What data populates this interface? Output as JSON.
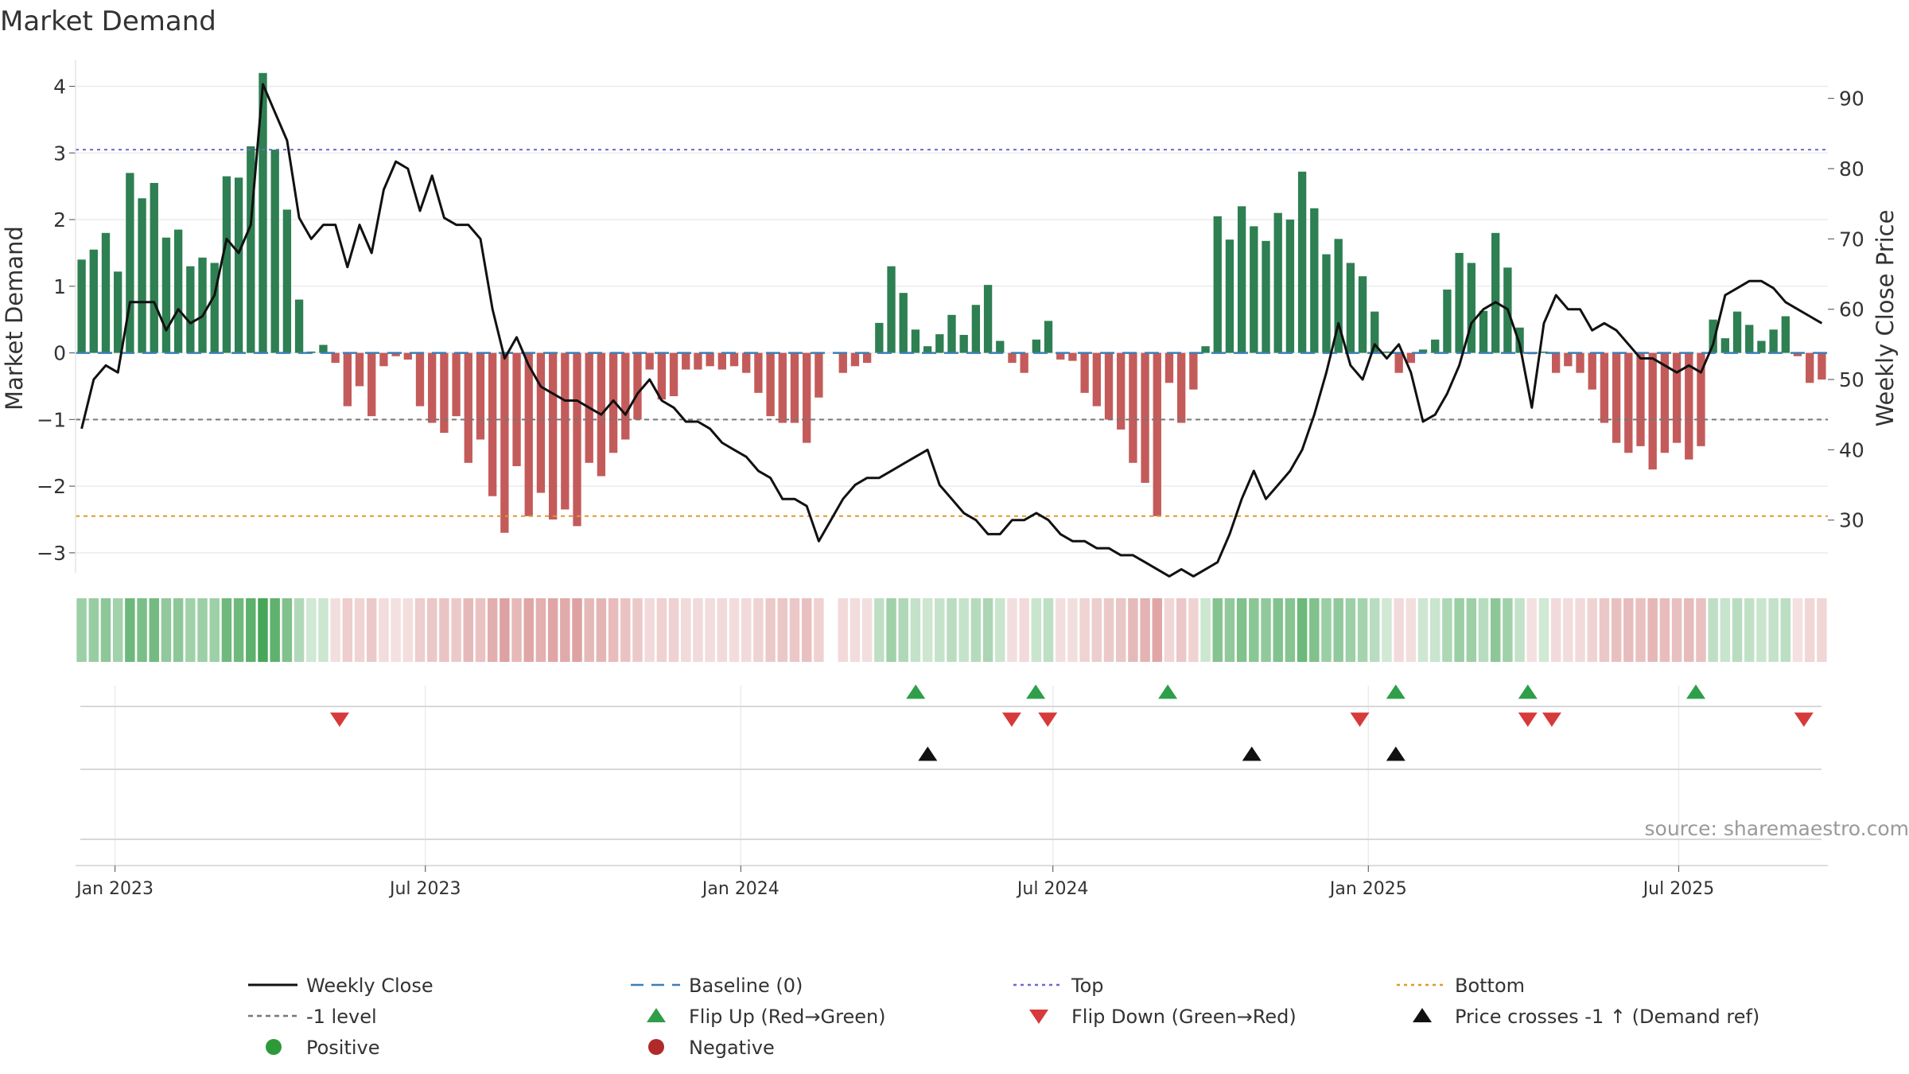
{
  "chart_data": {
    "type": "bar+line",
    "title": "Market Demand",
    "ylabel": "Market Demand",
    "ylabel_right": "Weekly Close Price",
    "ylim": [
      -3.3,
      4.4
    ],
    "ylim_right": [
      22.5,
      95.5
    ],
    "yticks": [
      -3,
      -2,
      -1,
      0,
      1,
      2,
      3,
      4
    ],
    "yticks_right": [
      30,
      40,
      50,
      60,
      70,
      80,
      90
    ],
    "date_start": "2022-12-09",
    "date_end": "2025-09-26",
    "x_ticks": [
      {
        "date": "2023-01-01",
        "label": "Jan 2023"
      },
      {
        "date": "2023-07-01",
        "label": "Jul 2023"
      },
      {
        "date": "2024-01-01",
        "label": "Jan 2024"
      },
      {
        "date": "2024-07-01",
        "label": "Jul 2024"
      },
      {
        "date": "2025-01-01",
        "label": "Jan 2025"
      },
      {
        "date": "2025-07-01",
        "label": "Jul 2025"
      }
    ],
    "reference_lines": [
      {
        "name": "Top",
        "value": 3.05,
        "color": "#6a6ad0",
        "dash": "4,5"
      },
      {
        "name": "-1 level",
        "value": -1.0,
        "color": "#777777",
        "dash": "6,5"
      },
      {
        "name": "Bottom",
        "value": -2.45,
        "color": "#e0982a",
        "dash": "5,5"
      },
      {
        "name": "Baseline (0)",
        "value": 0,
        "color": "#3a7fb8",
        "dash": "18,10"
      }
    ],
    "demand": [
      1.4,
      1.55,
      1.8,
      1.22,
      2.7,
      2.32,
      2.55,
      1.73,
      1.85,
      1.3,
      1.43,
      1.35,
      2.65,
      2.63,
      3.1,
      4.2,
      3.05,
      2.15,
      0.8,
      0.02,
      0.12,
      -0.15,
      -0.8,
      -0.5,
      -0.95,
      -0.2,
      -0.05,
      -0.1,
      -0.8,
      -1.05,
      -1.2,
      -0.95,
      -1.65,
      -1.3,
      -2.15,
      -2.7,
      -1.7,
      -2.45,
      -2.1,
      -2.5,
      -2.35,
      -2.6,
      -1.65,
      -1.85,
      -1.5,
      -1.3,
      -1.0,
      -0.25,
      -0.7,
      -0.65,
      -0.25,
      -0.25,
      -0.2,
      -0.25,
      -0.2,
      -0.3,
      -0.6,
      -0.95,
      -1.05,
      -1.05,
      -1.35,
      -0.67,
      null,
      -0.3,
      -0.2,
      -0.15,
      0.45,
      1.3,
      0.9,
      0.35,
      0.1,
      0.28,
      0.57,
      0.27,
      0.72,
      1.02,
      0.18,
      -0.15,
      -0.3,
      0.2,
      0.48,
      -0.1,
      -0.12,
      -0.6,
      -0.8,
      -1.0,
      -1.15,
      -1.65,
      -1.95,
      -2.45,
      -0.45,
      -1.05,
      -0.55,
      0.1,
      2.05,
      1.7,
      2.2,
      1.9,
      1.68,
      2.1,
      2.0,
      2.72,
      2.17,
      1.48,
      1.71,
      1.35,
      1.15,
      0.62,
      0.02,
      -0.3,
      -0.15,
      0.05,
      0.2,
      0.95,
      1.5,
      1.35,
      0.63,
      1.8,
      1.28,
      0.38,
      -0.02,
      0.02,
      -0.3,
      -0.2,
      -0.3,
      -0.55,
      -1.05,
      -1.35,
      -1.5,
      -1.4,
      -1.75,
      -1.5,
      -1.35,
      -1.6,
      -1.4,
      0.5,
      0.22,
      0.62,
      0.42,
      0.18,
      0.35,
      0.55,
      -0.05,
      -0.45,
      -0.4
    ],
    "price": [
      43,
      50,
      52,
      51,
      61,
      61,
      61,
      57,
      60,
      58,
      59,
      62,
      70,
      68,
      72,
      92,
      88,
      84,
      73,
      70,
      72,
      72,
      66,
      72,
      68,
      77,
      81,
      80,
      74,
      79,
      73,
      72,
      72,
      70,
      60,
      53,
      56,
      52,
      49,
      48,
      47,
      47,
      46,
      45,
      47,
      45,
      48,
      50,
      47,
      46,
      44,
      44,
      43,
      41,
      40,
      39,
      37,
      36,
      33,
      33,
      32,
      27,
      30,
      33,
      35,
      36,
      36,
      37,
      38,
      39,
      40,
      35,
      33,
      31,
      30,
      28,
      28,
      30,
      30,
      31,
      30,
      28,
      27,
      27,
      26,
      26,
      25,
      25,
      24,
      23,
      22,
      23,
      22,
      23,
      24,
      28,
      33,
      37,
      33,
      35,
      37,
      40,
      45,
      51,
      58,
      52,
      50,
      55,
      53,
      55,
      51,
      44,
      45,
      48,
      52,
      58,
      60,
      61,
      60,
      55,
      46,
      58,
      62,
      60,
      60,
      57,
      58,
      57,
      55,
      53,
      53,
      52,
      51,
      52,
      51,
      55,
      62,
      63,
      64,
      64,
      63,
      61,
      60,
      59,
      58
    ],
    "markers": {
      "flip_up": [
        "2024-04-12",
        "2024-06-21",
        "2024-09-06",
        "2025-01-17",
        "2025-04-04",
        "2025-07-11"
      ],
      "flip_down": [
        "2023-05-12",
        "2024-06-07",
        "2024-06-28",
        "2024-12-27",
        "2025-04-04",
        "2025-04-18",
        "2025-09-12"
      ],
      "price_crosses": [
        "2024-04-19",
        "2024-10-25",
        "2025-01-17"
      ]
    },
    "legend": [
      {
        "label": "Weekly Close",
        "kind": "line",
        "color": "#111111"
      },
      {
        "label": "Baseline (0)",
        "kind": "dash",
        "color": "#3a7fb8"
      },
      {
        "label": "Top",
        "kind": "dot",
        "color": "#6a6ad0"
      },
      {
        "label": "Bottom",
        "kind": "dot",
        "color": "#e0982a"
      },
      {
        "label": "-1 level",
        "kind": "dash",
        "color": "#777777"
      },
      {
        "label": "Flip Up (Red→Green)",
        "kind": "tri-up",
        "color": "#2e9e4a"
      },
      {
        "label": "Flip Down (Green→Red)",
        "kind": "tri-down",
        "color": "#d63a3a"
      },
      {
        "label": "Price crosses -1 ↑ (Demand ref)",
        "kind": "tri-up",
        "color": "#111111"
      },
      {
        "label": "Positive",
        "kind": "circle",
        "color": "#2d9a3a"
      },
      {
        "label": "Negative",
        "kind": "circle",
        "color": "#b02a2a"
      }
    ],
    "colors": {
      "positive_bar": "#2e7f52",
      "negative_bar": "#c45b5b",
      "price_line": "#111111"
    },
    "source": "source: sharemaestro.com"
  }
}
